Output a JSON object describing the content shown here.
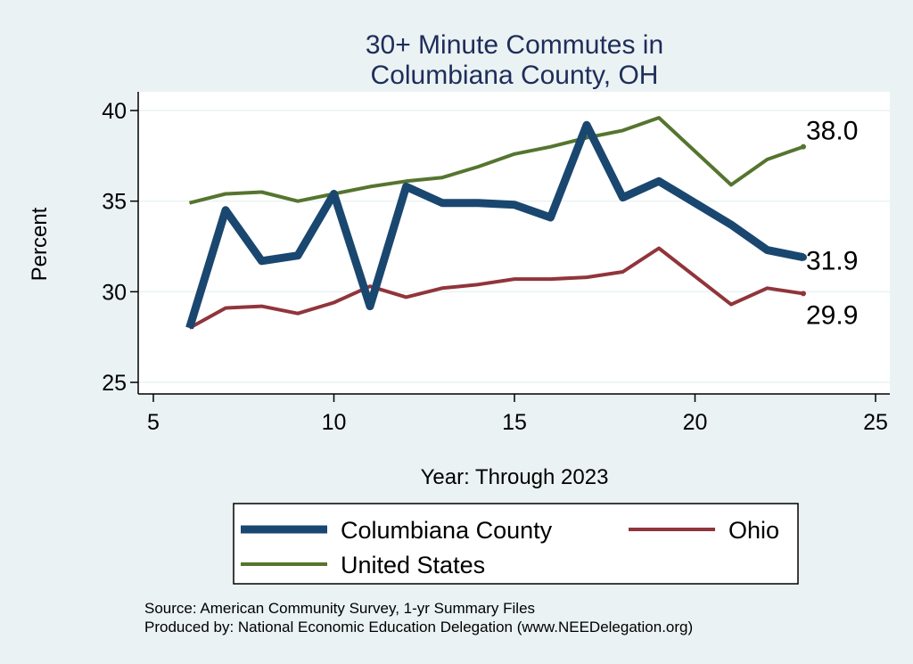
{
  "chart_data": {
    "type": "line",
    "title": [
      "30+ Minute Commutes in",
      "Columbiana County, OH"
    ],
    "xlabel": "Year: Through 2023",
    "ylabel": "Percent",
    "xlim": [
      5,
      25
    ],
    "ylim": [
      25,
      40
    ],
    "xticks": [
      5,
      10,
      15,
      20,
      25
    ],
    "yticks": [
      25,
      30,
      35,
      40
    ],
    "grid": true,
    "legend_placement": "bottom",
    "x": [
      6,
      7,
      8,
      9,
      10,
      11,
      12,
      13,
      14,
      15,
      16,
      17,
      18,
      19,
      21,
      22,
      23
    ],
    "series": [
      {
        "name": "Columbiana County",
        "color": "#1a476f",
        "width": 9,
        "values": [
          28.0,
          34.5,
          31.7,
          32.0,
          35.4,
          29.2,
          35.8,
          34.9,
          34.9,
          34.8,
          34.1,
          39.2,
          35.2,
          36.1,
          33.7,
          32.3,
          31.9
        ],
        "end_label": "31.9"
      },
      {
        "name": "Ohio",
        "color": "#90353b",
        "width": 4,
        "values": [
          28.0,
          29.1,
          29.2,
          28.8,
          29.4,
          30.3,
          29.7,
          30.2,
          30.4,
          30.7,
          30.7,
          30.8,
          31.1,
          32.4,
          29.3,
          30.2,
          29.9
        ],
        "end_label": "29.9"
      },
      {
        "name": "United States",
        "color": "#55752f",
        "width": 4,
        "values": [
          34.9,
          35.4,
          35.5,
          35.0,
          35.4,
          35.8,
          36.1,
          36.3,
          36.9,
          37.6,
          38.0,
          38.5,
          38.9,
          39.6,
          35.9,
          37.3,
          38.0
        ],
        "end_label": "38.0"
      }
    ],
    "notes": [
      "Source: American Community Survey, 1-yr Summary Files",
      "Produced by: National Economic Education Delegation (www.NEEDelegation.org)"
    ]
  }
}
